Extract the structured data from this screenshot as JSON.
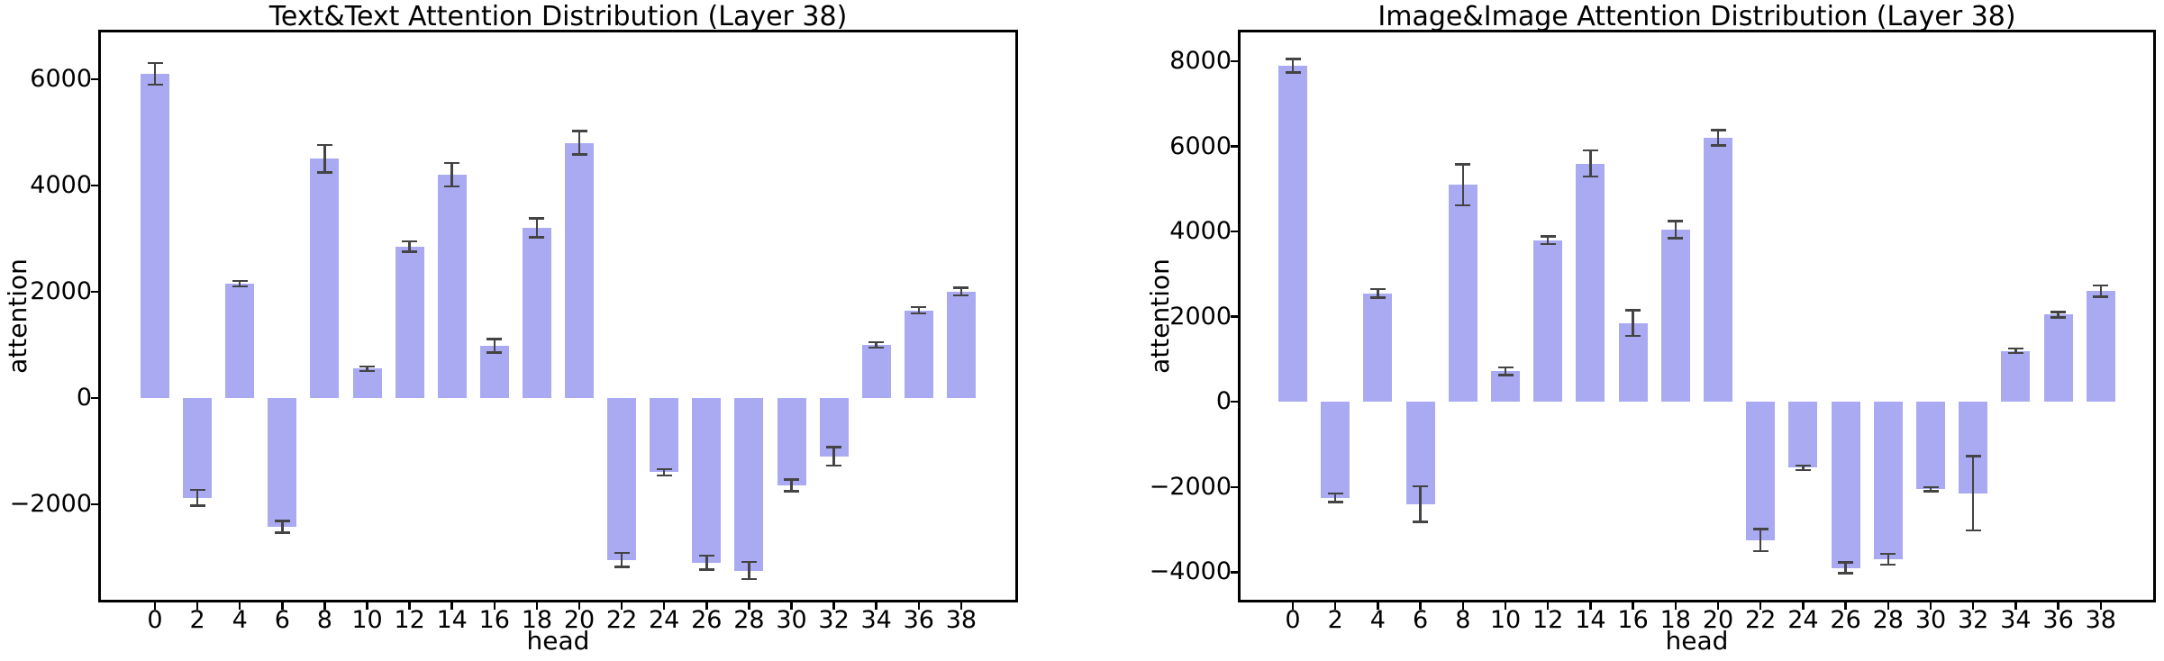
{
  "figure": {
    "background": "#ffffff",
    "bar_color": "#aaaaf2",
    "error_bar_color": "#444444",
    "axis_color": "#000000",
    "text_color": "#000000"
  },
  "chart_data": [
    {
      "type": "bar",
      "title": "Text&Text Attention Distribution (Layer 38)",
      "xlabel": "head",
      "ylabel": "attention",
      "categories": [
        0,
        2,
        4,
        6,
        8,
        10,
        12,
        14,
        16,
        18,
        20,
        22,
        24,
        26,
        28,
        30,
        32,
        34,
        36,
        38
      ],
      "values": [
        6100,
        -1880,
        2150,
        -2430,
        4500,
        550,
        2850,
        4200,
        980,
        3200,
        4800,
        -3050,
        -1400,
        -3100,
        -3250,
        -1650,
        -1100,
        1000,
        1650,
        2000
      ],
      "errors": [
        200,
        150,
        50,
        110,
        260,
        40,
        100,
        220,
        130,
        180,
        220,
        130,
        60,
        130,
        160,
        110,
        170,
        50,
        60,
        70
      ],
      "yticks": [
        6000,
        4000,
        2000,
        0,
        -2000
      ],
      "ylim": [
        -3800,
        6880
      ],
      "grid": false,
      "legend": "none",
      "bar_color": "#aaaaf2"
    },
    {
      "type": "bar",
      "title": "Image&Image Attention Distribution (Layer 38)",
      "xlabel": "head",
      "ylabel": "attention",
      "categories": [
        0,
        2,
        4,
        6,
        8,
        10,
        12,
        14,
        16,
        18,
        20,
        22,
        24,
        26,
        28,
        30,
        32,
        34,
        36,
        38
      ],
      "values": [
        7900,
        -2250,
        2550,
        -2400,
        5100,
        720,
        3800,
        5600,
        1850,
        4050,
        6200,
        -3250,
        -1550,
        -3900,
        -3700,
        -2050,
        -2150,
        1200,
        2050,
        2600
      ],
      "errors": [
        160,
        100,
        100,
        420,
        480,
        90,
        90,
        310,
        300,
        200,
        180,
        260,
        55,
        130,
        130,
        50,
        870,
        50,
        65,
        130
      ],
      "yticks": [
        8000,
        6000,
        4000,
        2000,
        0,
        -2000,
        -4000
      ],
      "ylim": [
        -4650,
        8680
      ],
      "grid": false,
      "legend": "none",
      "bar_color": "#aaaaf2"
    }
  ]
}
